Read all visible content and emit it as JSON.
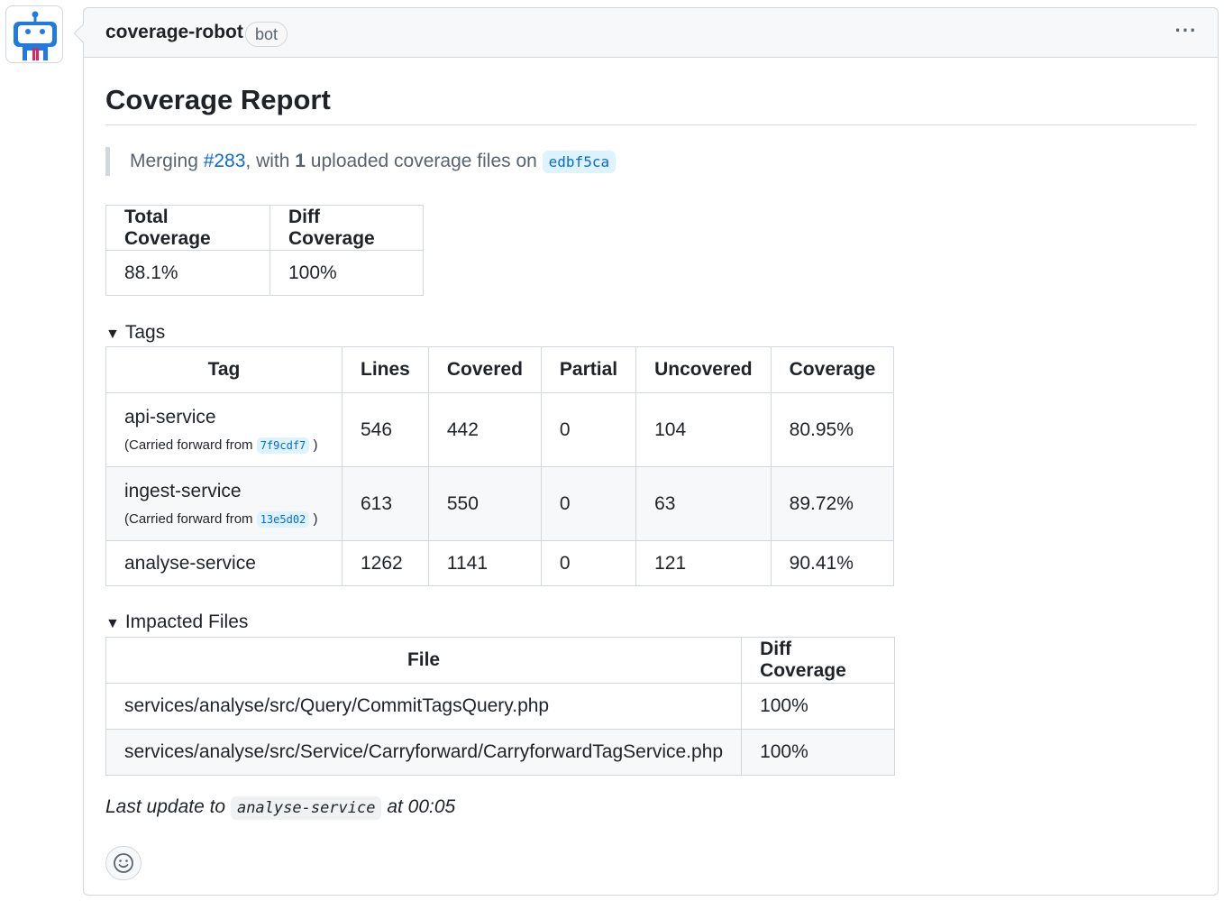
{
  "comment": {
    "author": "coverage-robot",
    "badge": "bot",
    "menu_icon": "kebab-horizontal-icon"
  },
  "report": {
    "title": "Coverage Report",
    "merge_note": {
      "prefix": "Merging ",
      "pr_link": "#283",
      "middle": ", with ",
      "count": "1",
      "suffix": " uploaded coverage files on ",
      "commit": "edbf5ca"
    },
    "summary": {
      "headers": [
        "Total Coverage",
        "Diff Coverage"
      ],
      "values": [
        "88.1%",
        "100%"
      ]
    },
    "tags": {
      "toggle_label": "Tags",
      "headers": [
        "Tag",
        "Lines",
        "Covered",
        "Partial",
        "Uncovered",
        "Coverage"
      ],
      "rows": [
        {
          "tag": "api-service",
          "carried_prefix": "(Carried forward from",
          "carried_commit": "7f9cdf7",
          "carried_suffix": ")",
          "lines": "546",
          "covered": "442",
          "partial": "0",
          "uncovered": "104",
          "coverage": "80.95%"
        },
        {
          "tag": "ingest-service",
          "carried_prefix": "(Carried forward from",
          "carried_commit": "13e5d02",
          "carried_suffix": ")",
          "lines": "613",
          "covered": "550",
          "partial": "0",
          "uncovered": "63",
          "coverage": "89.72%"
        },
        {
          "tag": "analyse-service",
          "lines": "1262",
          "covered": "1141",
          "partial": "0",
          "uncovered": "121",
          "coverage": "90.41%"
        }
      ]
    },
    "impacted_files": {
      "toggle_label": "Impacted Files",
      "headers": [
        "File",
        "Diff Coverage"
      ],
      "rows": [
        {
          "file": "services/analyse/src/Query/CommitTagsQuery.php",
          "diff": "100%"
        },
        {
          "file": "services/analyse/src/Service/Carryforward/CarryforwardTagService.php",
          "diff": "100%"
        }
      ]
    },
    "last_update": {
      "prefix": "Last update to ",
      "ref": "analyse-service",
      "suffix": " at 00:05"
    }
  },
  "reaction_icon": "smiley-icon",
  "colors": {
    "link": "#0969da",
    "border": "#d0d7de",
    "header_bg": "#f6f8fa",
    "avatar_blue": "#1f7be0",
    "avatar_red": "#e0245e"
  }
}
